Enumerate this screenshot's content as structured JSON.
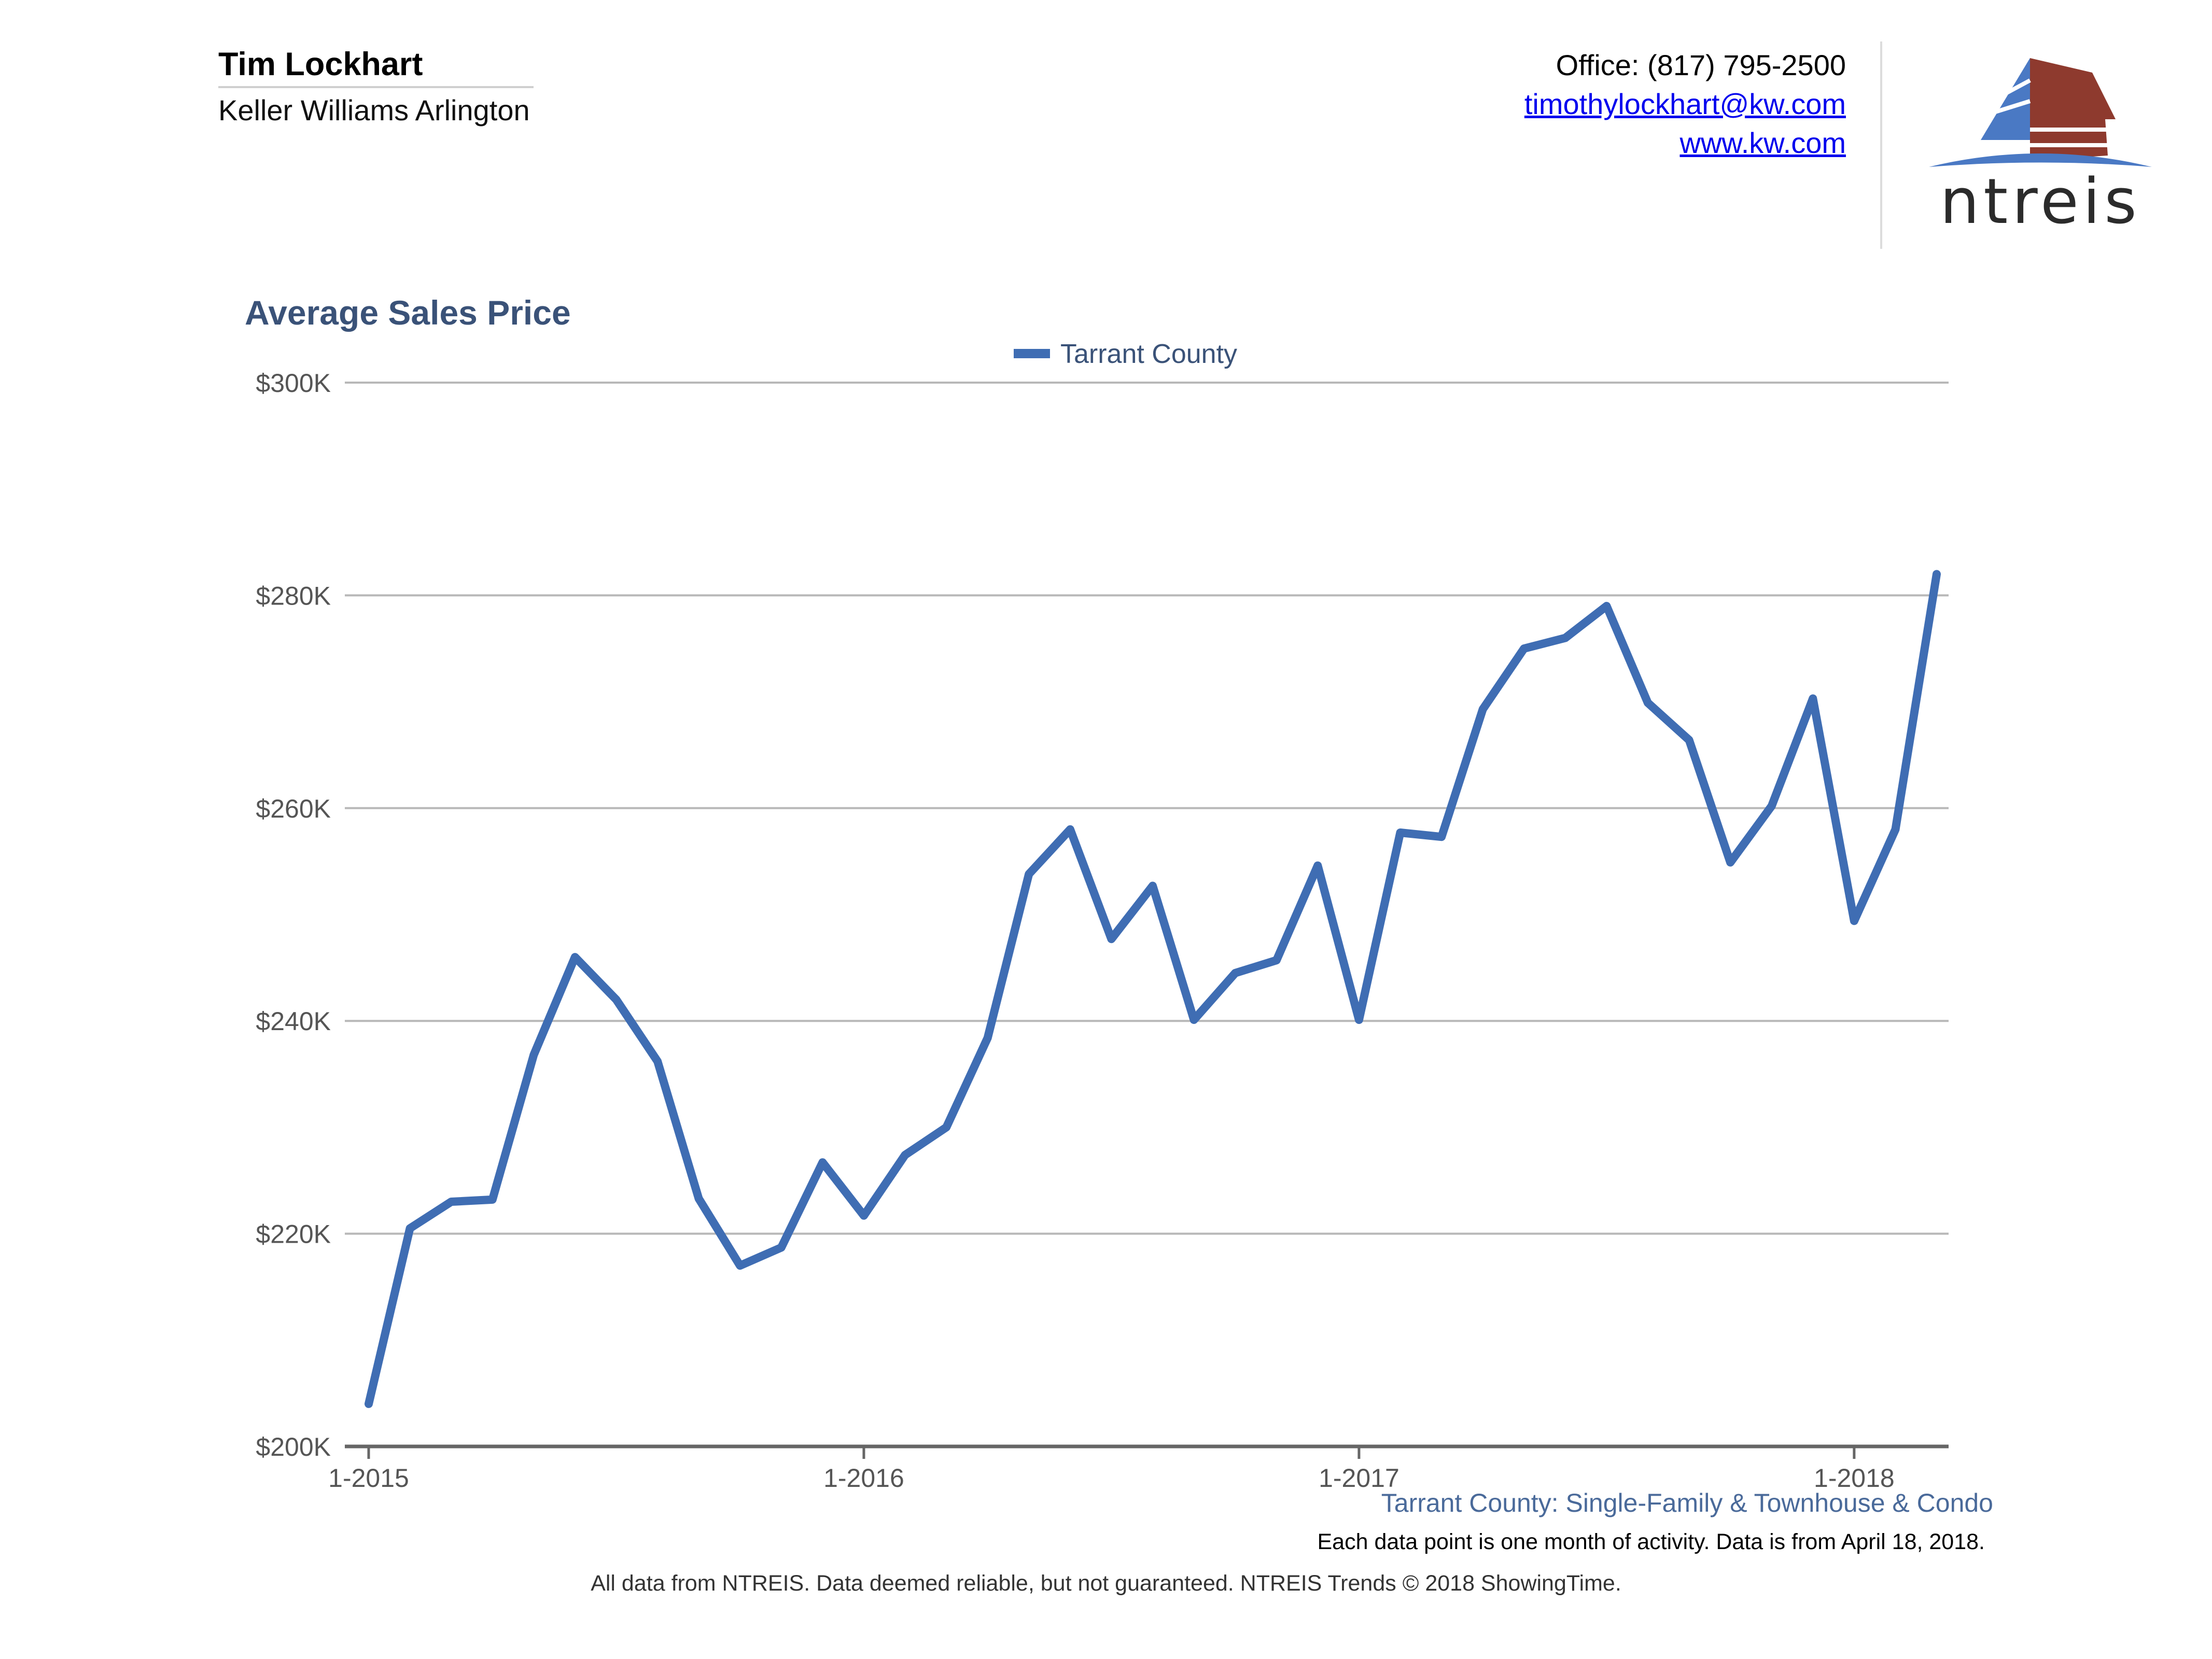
{
  "agent": {
    "name": "Tim Lockhart",
    "company": "Keller Williams Arlington"
  },
  "contact": {
    "office": "Office: (817) 795-2500",
    "email": "timothylockhart@kw.com",
    "website": "www.kw.com"
  },
  "logo": {
    "text": "ntreis",
    "colors": {
      "blue": "#4a79c4",
      "red": "#8e3a2e",
      "dark": "#2b2b2b"
    }
  },
  "chart_data": {
    "type": "line",
    "title": "Average Sales Price",
    "legend": [
      "Tarrant County"
    ],
    "legend_position": "top-center",
    "color": "#3f6db3",
    "x_tick_labels": [
      "1-2015",
      "1-2016",
      "1-2017",
      "1-2018"
    ],
    "x_tick_indices": [
      0,
      12,
      24,
      36
    ],
    "y_tick_labels": [
      "$200K",
      "$220K",
      "$240K",
      "$260K",
      "$280K",
      "$300K"
    ],
    "y_tick_values": [
      200000,
      220000,
      240000,
      260000,
      280000,
      300000
    ],
    "ylim": [
      200000,
      300000
    ],
    "grid": true,
    "series": [
      {
        "name": "Tarrant County",
        "x": [
          "1-2015",
          "2-2015",
          "3-2015",
          "4-2015",
          "5-2015",
          "6-2015",
          "7-2015",
          "8-2015",
          "9-2015",
          "10-2015",
          "11-2015",
          "12-2015",
          "1-2016",
          "2-2016",
          "3-2016",
          "4-2016",
          "5-2016",
          "6-2016",
          "7-2016",
          "8-2016",
          "9-2016",
          "10-2016",
          "11-2016",
          "12-2016",
          "1-2017",
          "2-2017",
          "3-2017",
          "4-2017",
          "5-2017",
          "6-2017",
          "7-2017",
          "8-2017",
          "9-2017",
          "10-2017",
          "11-2017",
          "12-2017",
          "1-2018",
          "2-2018",
          "3-2018"
        ],
        "values": [
          204000,
          220500,
          223000,
          223200,
          236800,
          246000,
          242000,
          236200,
          223300,
          217000,
          218700,
          226700,
          221700,
          227400,
          230000,
          238400,
          253800,
          258000,
          247700,
          252700,
          240100,
          244500,
          245700,
          254600,
          240100,
          257700,
          257300,
          269300,
          275000,
          276000,
          279000,
          269900,
          266400,
          254900,
          260200,
          270300,
          249400,
          258000,
          282000
        ]
      }
    ],
    "subtitle": "Tarrant County: Single-Family & Townhouse & Condo",
    "note": "Each data point is one month of activity. Data is from April 18, 2018."
  },
  "footer": "All data from NTREIS. Data deemed reliable, but not guaranteed. NTREIS Trends © 2018 ShowingTime."
}
